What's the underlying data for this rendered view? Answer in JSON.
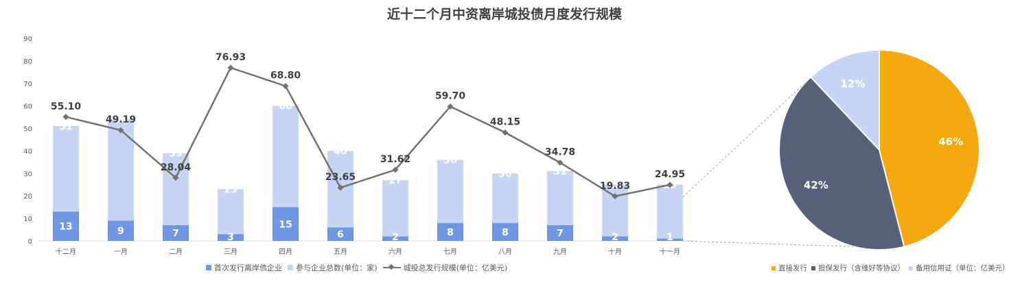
{
  "colors": {
    "first_issue": "#6F97E3",
    "participants": "#C6D5F4",
    "line": "#767171",
    "direct": "#F6A90F",
    "guarantee": "#566078",
    "standby": "#C6D5F4"
  },
  "chart_data": [
    {
      "type": "bar",
      "title": "近十二个月中资离岸城投债月度发行规模",
      "categories": [
        "十二月",
        "一月",
        "二月",
        "三月",
        "四月",
        "五月",
        "六月",
        "七月",
        "八月",
        "九月",
        "十月",
        "十一月"
      ],
      "ylim": [
        0,
        90
      ],
      "yticks": [
        0,
        10,
        20,
        30,
        40,
        50,
        60,
        70,
        80,
        90
      ],
      "series": [
        {
          "name": "首次发行离岸债企业",
          "kind": "bar",
          "values": [
            13,
            9,
            7,
            3,
            15,
            6,
            2,
            8,
            8,
            7,
            2,
            1
          ]
        },
        {
          "name": "参与企业总数(单位：家)",
          "kind": "bar",
          "values": [
            51,
            54,
            39,
            23,
            60,
            40,
            27,
            36,
            30,
            31,
            25,
            25
          ]
        },
        {
          "name": "城投总发行规模(单位：亿美元)",
          "kind": "line",
          "values": [
            55.1,
            49.19,
            28.04,
            76.93,
            68.8,
            23.65,
            31.62,
            59.7,
            48.15,
            34.78,
            19.83,
            24.95
          ],
          "labels": [
            "55.10",
            "49.19",
            "28.04",
            "76.93",
            "68.80",
            "23.65",
            "31.62",
            "59.70",
            "48.15",
            "34.78",
            "19.83",
            "24.95"
          ]
        }
      ],
      "legend": "bottom"
    },
    {
      "type": "pie",
      "labels": [
        "直接发行",
        "担保发行（含维好等协议）",
        "备用信用证（单位：亿美元）"
      ],
      "values": [
        46,
        42,
        12
      ],
      "value_labels": [
        "46%",
        "42%",
        "12%"
      ],
      "legend": "bottom"
    }
  ]
}
